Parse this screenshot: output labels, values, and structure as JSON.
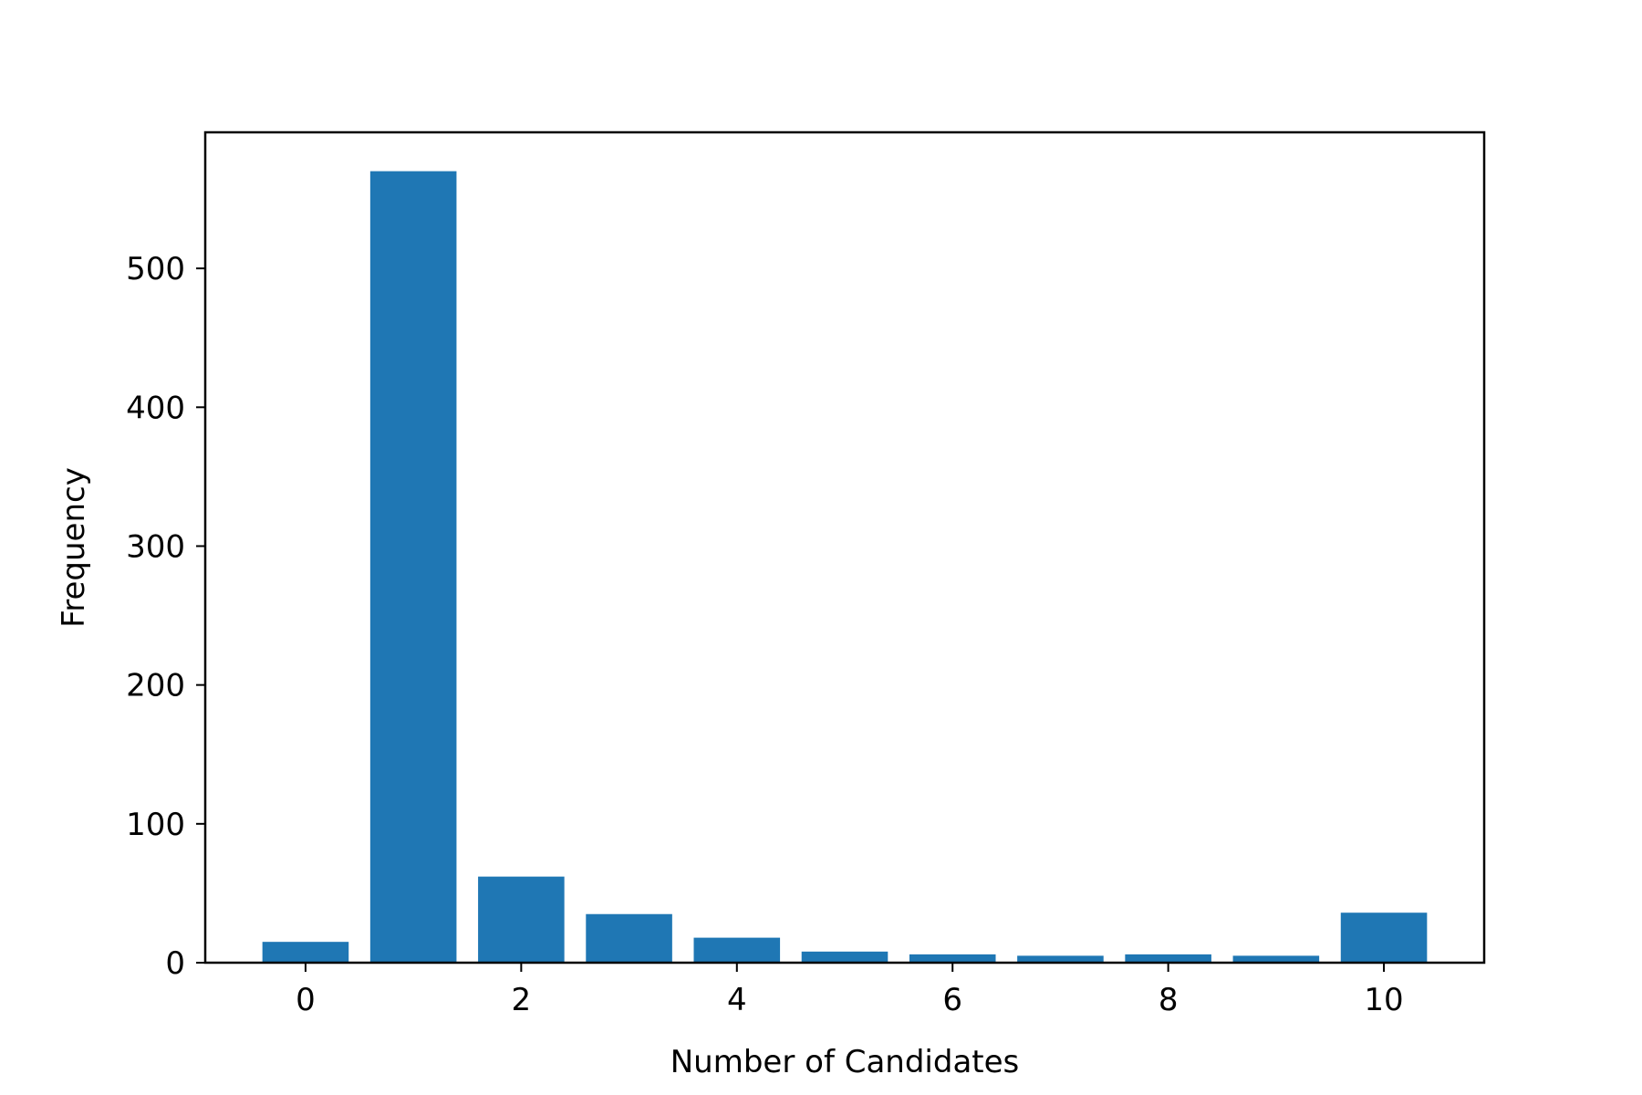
{
  "chart_data": {
    "type": "bar",
    "title": "",
    "xlabel": "Number of Candidates",
    "ylabel": "Frequency",
    "x": [
      0,
      1,
      2,
      3,
      4,
      5,
      6,
      7,
      8,
      9,
      10
    ],
    "values": [
      15,
      570,
      62,
      35,
      18,
      8,
      6,
      5,
      6,
      5,
      36
    ],
    "xlim": [
      -0.93,
      10.93
    ],
    "ylim": [
      0,
      598
    ],
    "xticks": [
      0,
      2,
      4,
      6,
      8,
      10
    ],
    "yticks": [
      0,
      100,
      200,
      300,
      400,
      500
    ],
    "bar_width": 0.8,
    "bar_color": "#1f77b4",
    "grid": false,
    "legend": "none"
  }
}
